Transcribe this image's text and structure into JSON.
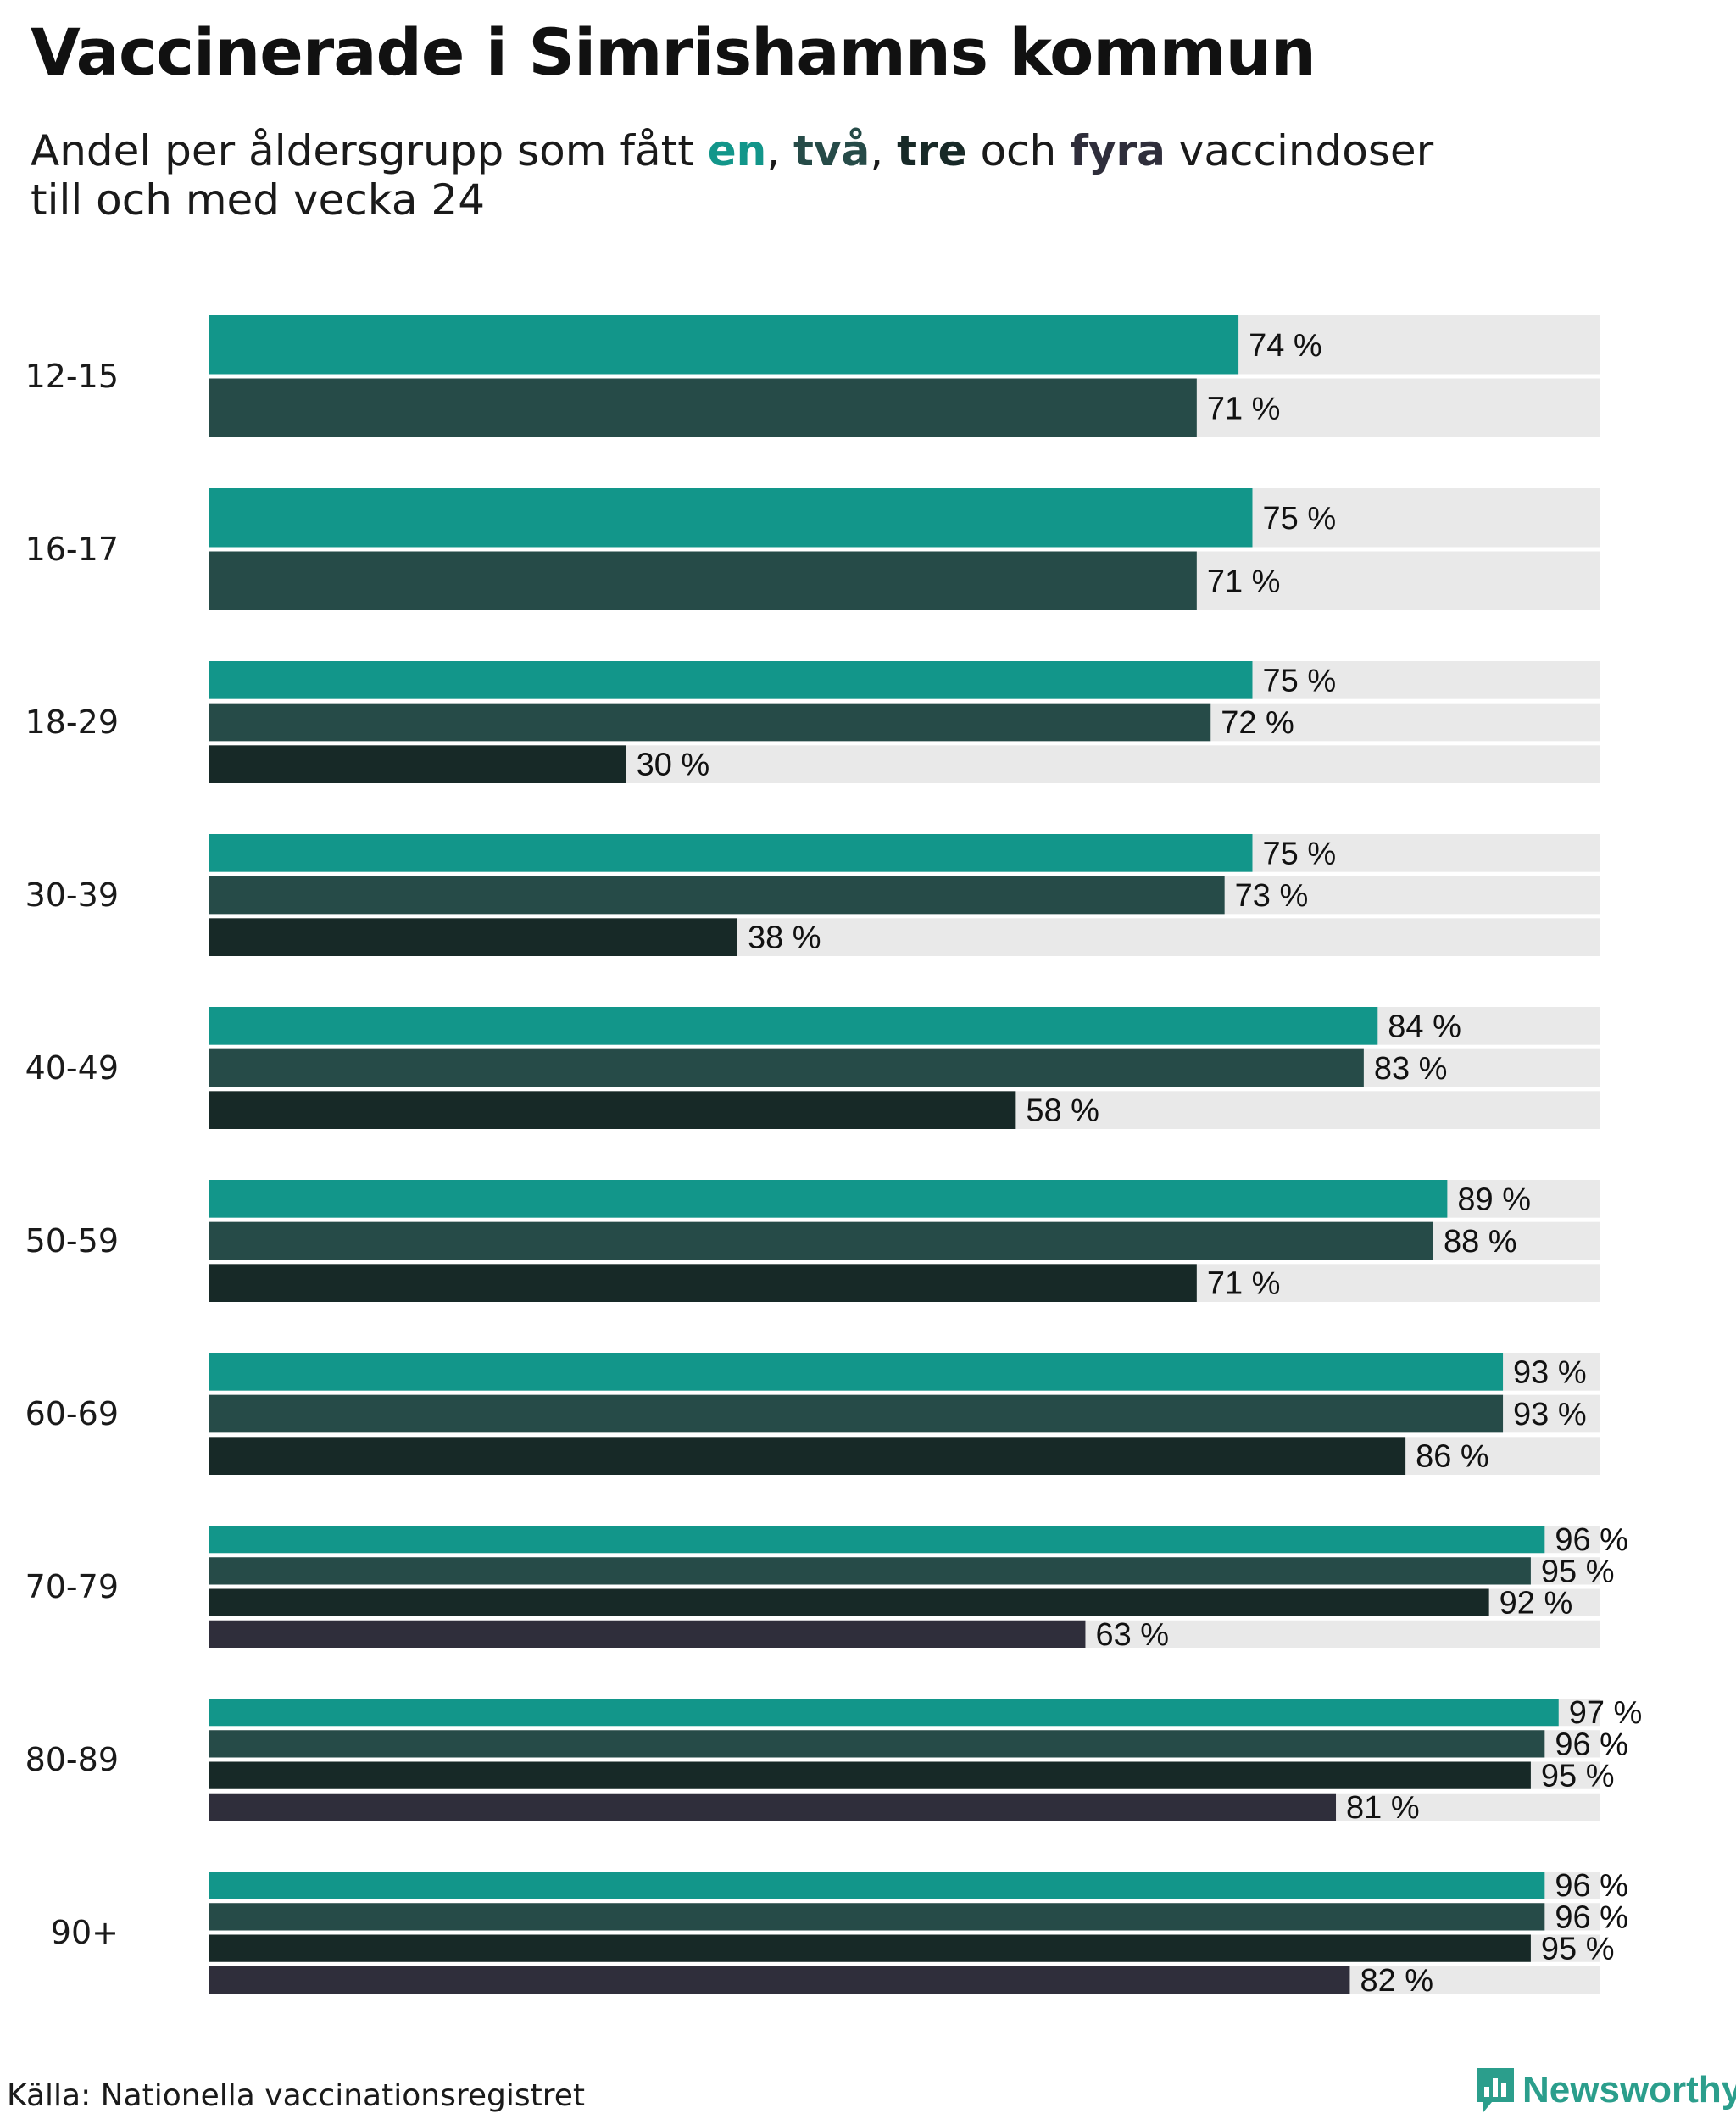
{
  "title": "Vaccinerade i Simrishamns kommun",
  "subtitle": {
    "prefix": "Andel per åldersgrupp som fått ",
    "dose1": "en",
    "sep1": ", ",
    "dose2": "två",
    "sep2": ", ",
    "dose3": "tre",
    "sep3": " och ",
    "dose4": "fyra",
    "suffix": " vaccindoser",
    "line2": "till och med vecka 24"
  },
  "colors": {
    "dose1": "#12968a",
    "dose2": "#264b48",
    "dose3": "#172927",
    "dose4": "#2f2e3b",
    "track": "#e9e9e9"
  },
  "source": "Källa: Nationella vaccinationsregistret",
  "brand": {
    "name": "Newsworthy",
    "icon": "newsworthy-logo-icon",
    "color": "#2b9e8c"
  },
  "chart_data": {
    "type": "bar",
    "orientation": "horizontal",
    "xlim": [
      0,
      100
    ],
    "unit": "%",
    "grid": false,
    "categories": [
      "12-15",
      "16-17",
      "18-29",
      "30-39",
      "40-49",
      "50-59",
      "60-69",
      "70-79",
      "80-89",
      "90+"
    ],
    "series": [
      {
        "key": "dose1",
        "values": [
          74,
          75,
          75,
          75,
          84,
          89,
          93,
          96,
          97,
          96
        ]
      },
      {
        "key": "dose2",
        "values": [
          71,
          71,
          72,
          73,
          83,
          88,
          93,
          95,
          96,
          96
        ]
      },
      {
        "key": "dose3",
        "values": [
          null,
          null,
          30,
          38,
          58,
          71,
          86,
          92,
          95,
          95
        ]
      },
      {
        "key": "dose4",
        "values": [
          null,
          null,
          null,
          null,
          null,
          null,
          null,
          63,
          81,
          82
        ]
      }
    ],
    "value_labels": [
      [
        "74 %",
        "71 %"
      ],
      [
        "75 %",
        "71 %"
      ],
      [
        "75 %",
        "72 %",
        "30 %"
      ],
      [
        "75 %",
        "73 %",
        "38 %"
      ],
      [
        "84 %",
        "83 %",
        "58 %"
      ],
      [
        "89 %",
        "88 %",
        "71 %"
      ],
      [
        "93 %",
        "93 %",
        "86 %"
      ],
      [
        "96 %",
        "95 %",
        "92 %",
        "63 %"
      ],
      [
        "97 %",
        "96 %",
        "95 %",
        "81 %"
      ],
      [
        "96 %",
        "96 %",
        "95 %",
        "82 %"
      ]
    ]
  }
}
